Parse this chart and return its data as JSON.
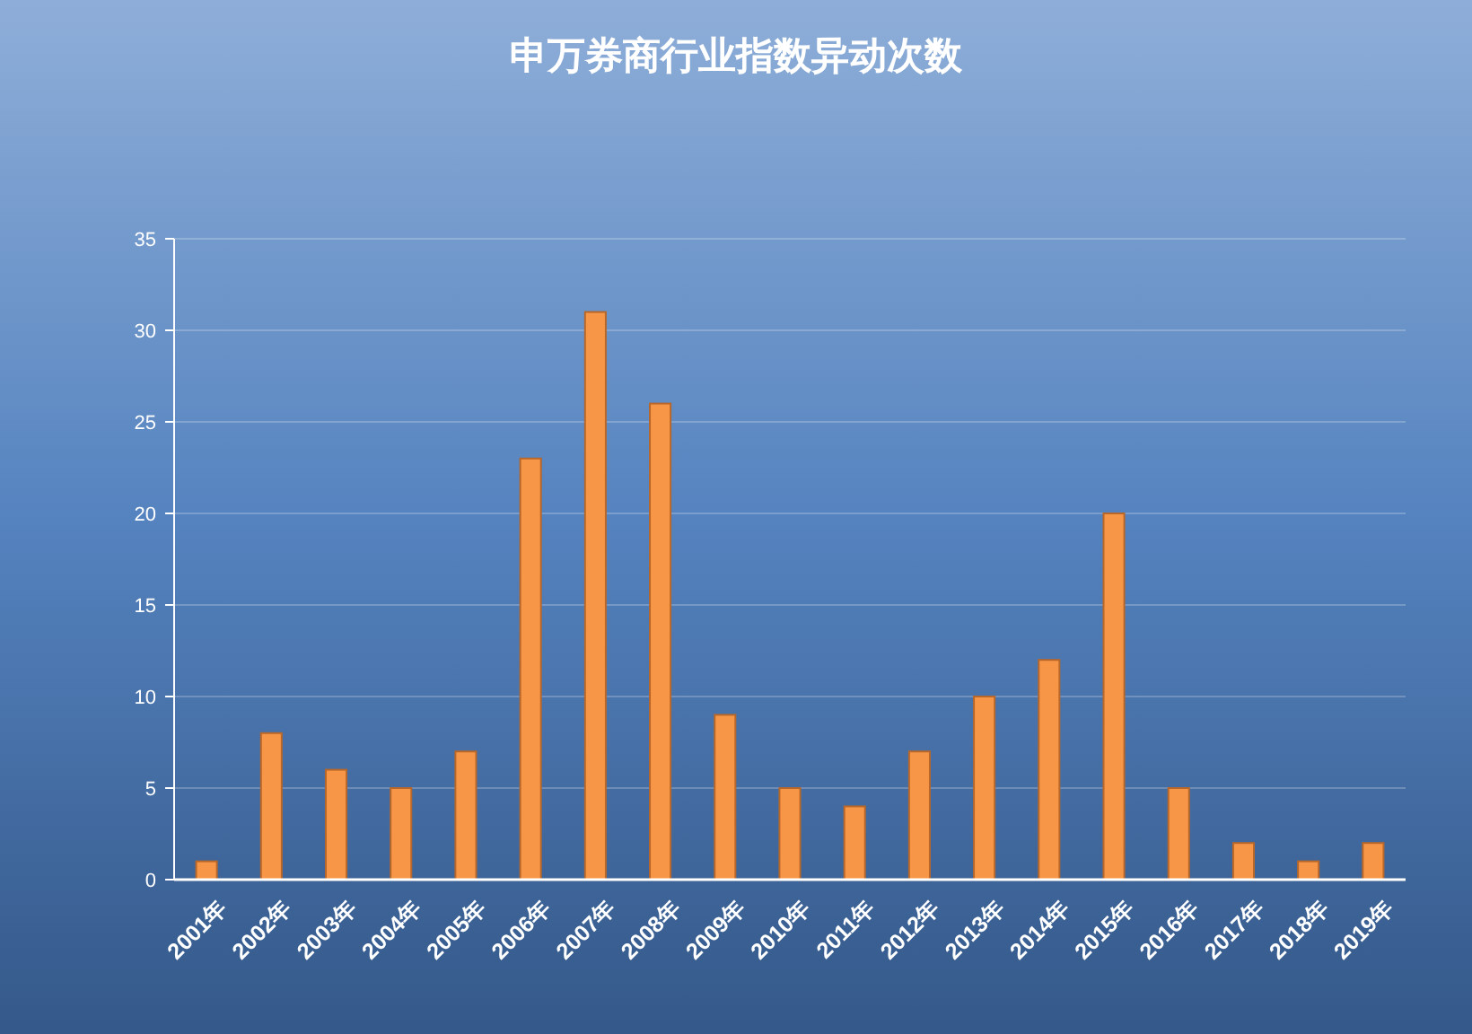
{
  "chart_data": {
    "type": "bar",
    "title": "申万券商行业指数异动次数",
    "categories": [
      "2001年",
      "2002年",
      "2003年",
      "2004年",
      "2005年",
      "2006年",
      "2007年",
      "2008年",
      "2009年",
      "2010年",
      "2011年",
      "2012年",
      "2013年",
      "2014年",
      "2015年",
      "2016年",
      "2017年",
      "2018年",
      "2019年"
    ],
    "values": [
      1,
      8,
      6,
      5,
      7,
      23,
      31,
      26,
      9,
      5,
      4,
      7,
      10,
      12,
      20,
      5,
      2,
      1,
      2
    ],
    "color": "#f79646",
    "ylim": [
      0,
      35
    ],
    "yticks": [
      0,
      5,
      10,
      15,
      20,
      25,
      30,
      35
    ],
    "grid": "y"
  }
}
